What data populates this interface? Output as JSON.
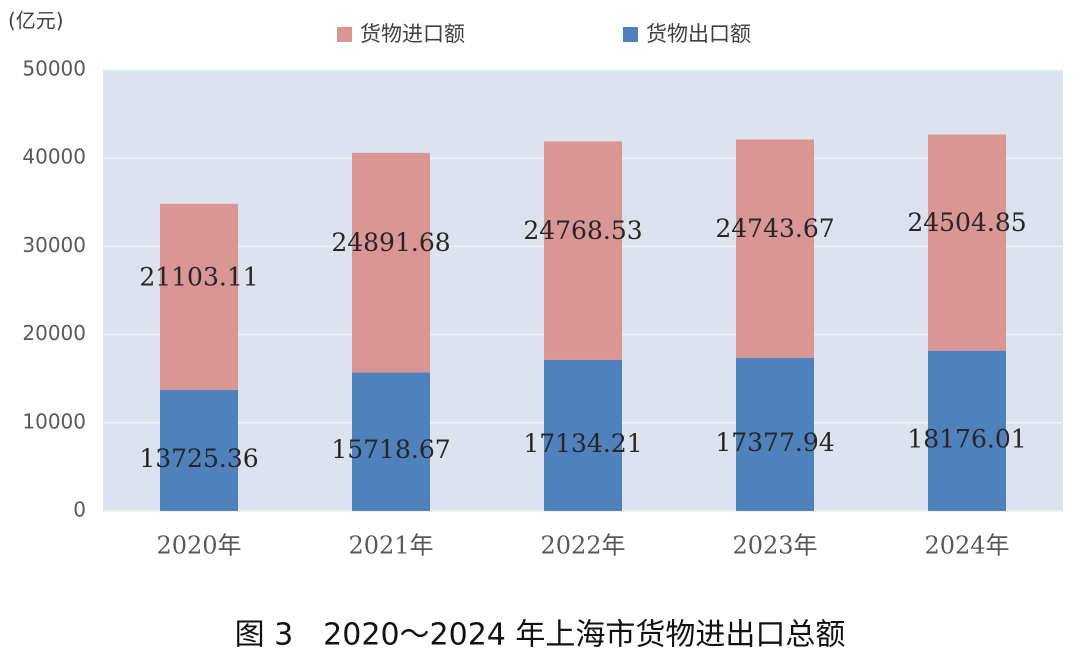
{
  "chart_data": {
    "type": "stacked-bar",
    "title": "图 3　2020～2024 年上海市货物进出口总额",
    "y_label": "(亿元)",
    "categories": [
      "2020年",
      "2021年",
      "2022年",
      "2023年",
      "2024年"
    ],
    "series": [
      {
        "name": "货物进口额",
        "color": "#d99694",
        "values": [
          21103.11,
          24891.68,
          24768.53,
          24743.67,
          24504.85
        ]
      },
      {
        "name": "货物出口额",
        "color": "#4f81bd",
        "values": [
          13725.36,
          15718.67,
          17134.21,
          17377.94,
          18176.01
        ]
      }
    ],
    "ylim": [
      0,
      50000
    ],
    "yticks": [
      0,
      10000,
      20000,
      30000,
      40000,
      50000
    ],
    "grid": true
  }
}
